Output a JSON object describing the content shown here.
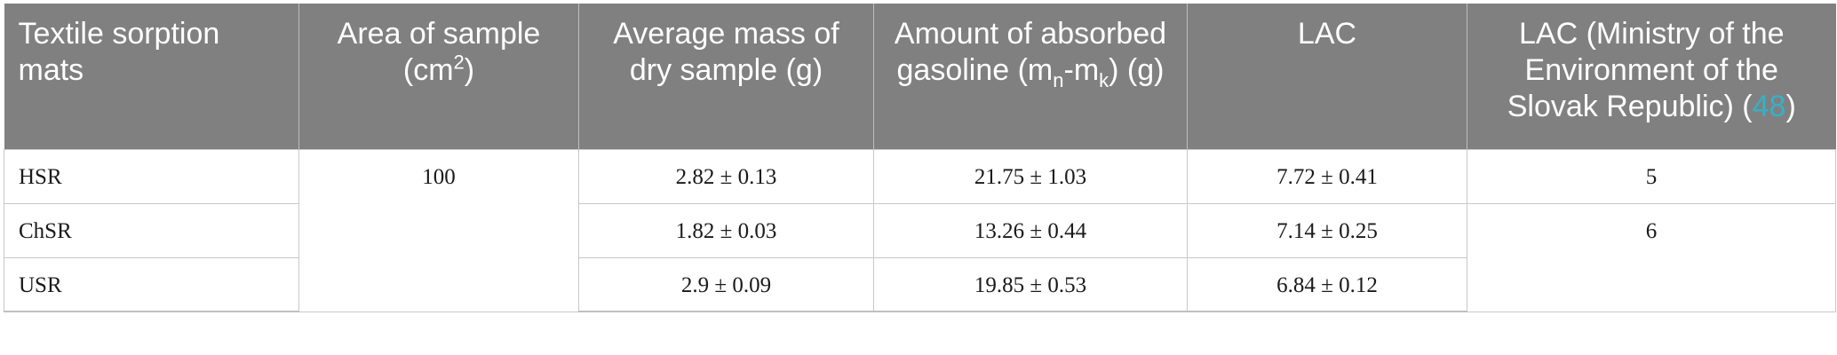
{
  "table": {
    "headers": {
      "col1": "Textile sorption mats",
      "col2_main": "Area of sample (cm",
      "col2_sup": "2",
      "col2_tail": ")",
      "col3": "Average mass of dry sample (g)",
      "col4_pre": "Amount of absorbed gasoline (m",
      "col4_sub1": "n",
      "col4_mid": "-m",
      "col4_sub2": "k",
      "col4_tail": ") (g)",
      "col5": "LAC",
      "col6_main": "LAC (Ministry of the Environment of the Slovak Republic) (",
      "col6_ref": "48",
      "col6_tail": ")"
    },
    "area_value": "100",
    "rows": [
      {
        "mat": "HSR",
        "mass": "2.82 ± 0.13",
        "absorbed": "21.75 ± 1.03",
        "lac": "7.72 ± 0.41",
        "lac_ministry": "5"
      },
      {
        "mat": "ChSR",
        "mass": "1.82 ± 0.03",
        "absorbed": "13.26 ± 0.44",
        "lac": "7.14 ± 0.25",
        "lac_ministry": "6"
      },
      {
        "mat": "USR",
        "mass": "2.9 ± 0.09",
        "absorbed": "19.85 ± 0.53",
        "lac": "6.84 ± 0.12"
      }
    ]
  }
}
